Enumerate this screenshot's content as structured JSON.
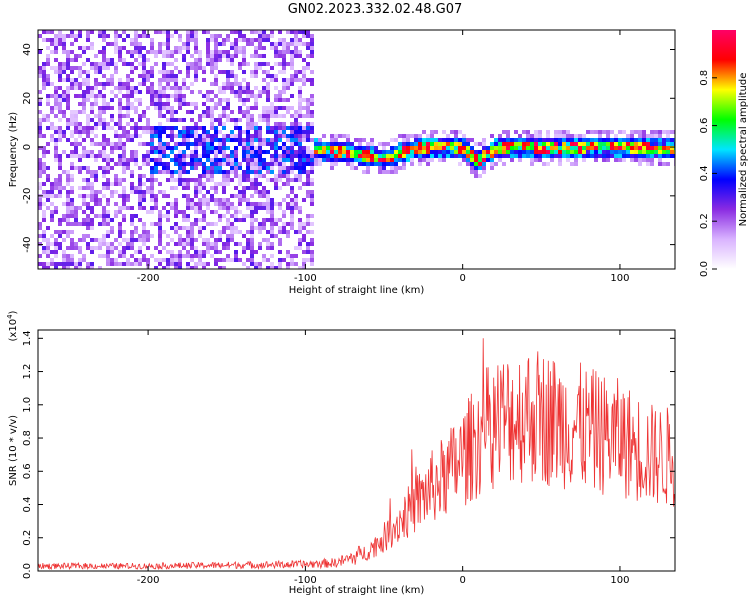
{
  "title": "GN02.2023.332.02.48.G07",
  "chart_data": [
    {
      "type": "heatmap",
      "xlabel": "Height of straight line (km)",
      "ylabel": "Frequency (Hz)",
      "xlim": [
        -270,
        135
      ],
      "ylim": [
        -50,
        48
      ],
      "x_ticks": [
        -200,
        -100,
        0,
        100
      ],
      "x_tick_labels": [
        "-200",
        "-100",
        "0",
        "100"
      ],
      "y_ticks": [
        -40,
        -20,
        0,
        20,
        40
      ],
      "y_tick_labels": [
        "-40",
        "-20",
        "0",
        "20",
        "40"
      ],
      "colorbar": {
        "label": "Normalized spectral amplitude",
        "range": [
          0,
          1
        ],
        "ticks": [
          0.0,
          0.2,
          0.4,
          0.6,
          0.8
        ],
        "tick_labels": [
          "0.0",
          "0.2",
          "0.4",
          "0.6",
          "0.8"
        ],
        "colors": [
          "#ffffff",
          "#d9b3ff",
          "#8a2be2",
          "#0000ff",
          "#00e5ff",
          "#00ff00",
          "#ffff00",
          "#ff0000",
          "#ff0066"
        ]
      },
      "ridge": {
        "x": [
          -100,
          -80,
          -70,
          -60,
          -50,
          -45,
          -40,
          -30,
          -20,
          -10,
          0,
          5,
          8,
          12,
          20,
          30,
          40,
          60,
          80,
          100,
          120,
          135
        ],
        "frequency": [
          0,
          -1,
          -2,
          -3,
          -4,
          -3,
          -1,
          0,
          1,
          1,
          0,
          -3,
          -5,
          -3,
          0,
          1,
          1,
          0,
          1,
          1,
          0,
          0
        ]
      }
    },
    {
      "type": "line",
      "xlabel": "Height of straight line (km)",
      "ylabel": "SNR (10 * v/v)",
      "y_multiplier": "(x10",
      "y_multiplier_exp": "4",
      "y_multiplier_close": ")",
      "xlim": [
        -270,
        135
      ],
      "ylim": [
        0,
        1.45
      ],
      "x_ticks": [
        -200,
        -100,
        0,
        100
      ],
      "x_tick_labels": [
        "-200",
        "-100",
        "0",
        "100"
      ],
      "y_ticks": [
        0.0,
        0.2,
        0.4,
        0.6,
        0.8,
        1.0,
        1.2,
        1.4
      ],
      "y_tick_labels": [
        "0.0",
        "0.2",
        "0.4",
        "0.6",
        "0.8",
        "1.0",
        "1.2",
        "1.4"
      ],
      "series": [
        {
          "color": "#ee3333",
          "x": [
            -270,
            -250,
            -200,
            -150,
            -100,
            -80,
            -70,
            -60,
            -50,
            -40,
            -30,
            -20,
            -10,
            0,
            10,
            20,
            30,
            40,
            50,
            60,
            70,
            80,
            90,
            100,
            110,
            120,
            135
          ],
          "y": [
            0.03,
            0.03,
            0.03,
            0.035,
            0.04,
            0.05,
            0.08,
            0.12,
            0.2,
            0.3,
            0.4,
            0.5,
            0.58,
            0.68,
            0.8,
            0.9,
            0.92,
            0.95,
            0.93,
            0.9,
            0.88,
            0.85,
            0.82,
            0.8,
            0.75,
            0.7,
            0.68
          ]
        }
      ]
    }
  ]
}
